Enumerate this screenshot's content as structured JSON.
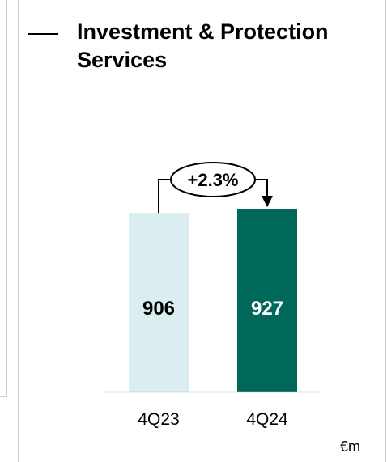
{
  "title": "Investment & Protection Services",
  "unit": "€m",
  "chart_data": {
    "type": "bar",
    "categories": [
      "4Q23",
      "4Q24"
    ],
    "values": [
      906,
      927
    ],
    "value_labels": [
      "906",
      "927"
    ],
    "bar_colors": [
      "#daeef2",
      "#006858"
    ],
    "label_colors": [
      "#000000",
      "#ffffff"
    ],
    "change_label": "+2.3%",
    "title": "Investment & Protection Services",
    "xlabel": "",
    "ylabel": "",
    "ylim": [
      0,
      927
    ],
    "grid": false,
    "legend": "none"
  }
}
